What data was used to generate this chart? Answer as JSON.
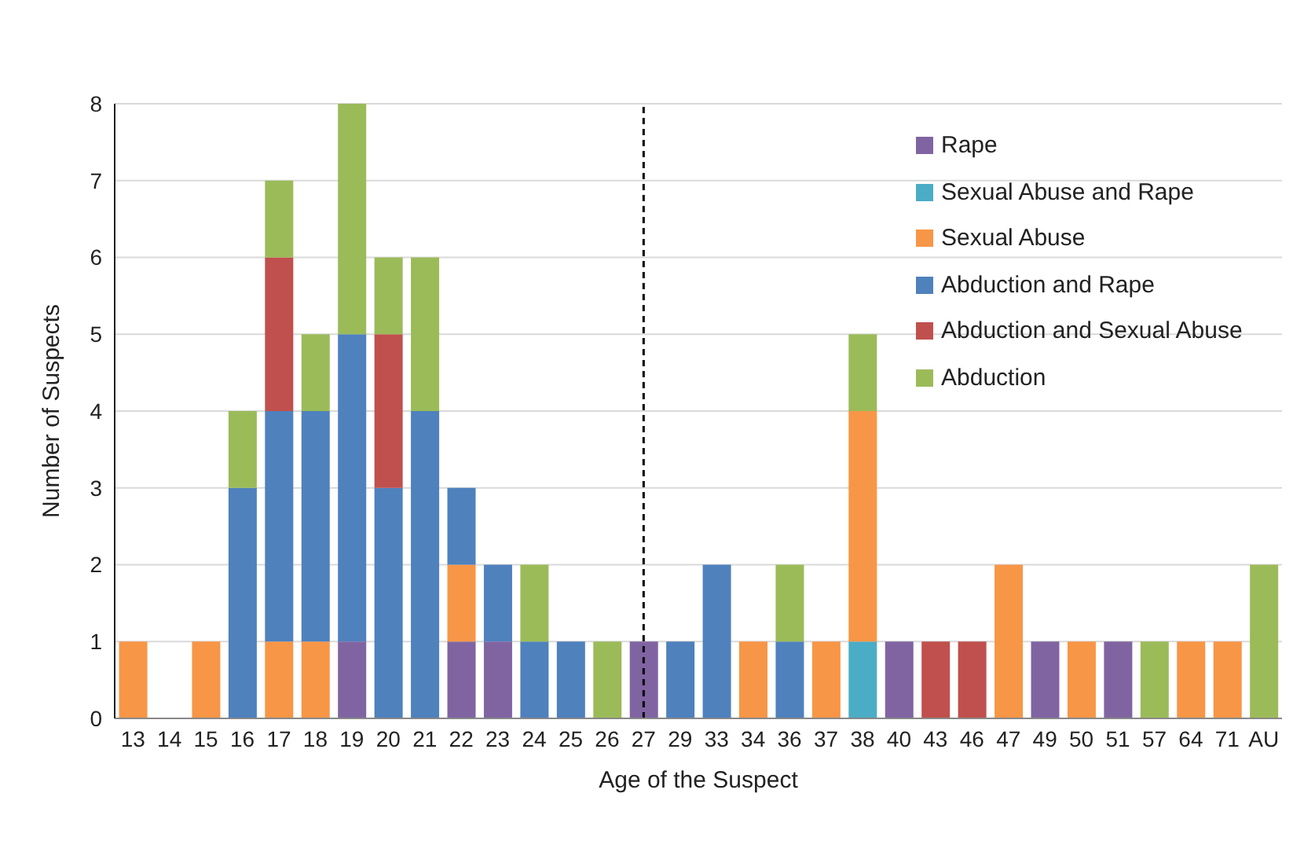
{
  "chart_data": {
    "type": "bar",
    "stacked": true,
    "xlabel": "Age of the Suspect",
    "ylabel": "Number of Suspects",
    "categories": [
      "13",
      "14",
      "15",
      "16",
      "17",
      "18",
      "19",
      "20",
      "21",
      "22",
      "23",
      "24",
      "25",
      "26",
      "27",
      "29",
      "33",
      "34",
      "36",
      "37",
      "38",
      "40",
      "43",
      "46",
      "47",
      "49",
      "50",
      "51",
      "57",
      "64",
      "71",
      "AU"
    ],
    "series": [
      {
        "name": "Rape",
        "color": "#8064a2",
        "values": [
          null,
          null,
          null,
          null,
          null,
          null,
          1,
          null,
          null,
          1,
          1,
          null,
          null,
          null,
          1,
          null,
          null,
          null,
          null,
          null,
          null,
          1,
          null,
          null,
          null,
          1,
          null,
          1,
          null,
          null,
          null,
          null
        ]
      },
      {
        "name": "Sexual Abuse and Rape",
        "color": "#4bacc6",
        "values": [
          null,
          null,
          null,
          null,
          null,
          null,
          null,
          null,
          null,
          null,
          null,
          null,
          null,
          null,
          null,
          null,
          null,
          null,
          null,
          null,
          1,
          null,
          null,
          null,
          null,
          null,
          null,
          null,
          null,
          null,
          null,
          null
        ]
      },
      {
        "name": "Sexual Abuse",
        "color": "#f79646",
        "values": [
          1,
          null,
          1,
          null,
          1,
          1,
          null,
          null,
          null,
          1,
          null,
          null,
          null,
          null,
          null,
          null,
          null,
          1,
          null,
          1,
          3,
          null,
          null,
          null,
          2,
          null,
          1,
          null,
          null,
          1,
          1,
          null
        ]
      },
      {
        "name": "Abduction and Rape",
        "color": "#4f81bd",
        "values": [
          null,
          null,
          null,
          3,
          3,
          3,
          4,
          3,
          4,
          1,
          1,
          1,
          1,
          null,
          null,
          1,
          2,
          null,
          1,
          null,
          null,
          null,
          null,
          null,
          null,
          null,
          null,
          null,
          null,
          null,
          null,
          null
        ]
      },
      {
        "name": "Abduction and Sexual Abuse",
        "color": "#c0504d",
        "values": [
          null,
          null,
          null,
          null,
          2,
          null,
          null,
          2,
          null,
          null,
          null,
          null,
          null,
          null,
          null,
          null,
          null,
          null,
          null,
          null,
          null,
          null,
          1,
          1,
          null,
          null,
          null,
          null,
          null,
          null,
          null,
          null
        ]
      },
      {
        "name": "Abduction",
        "color": "#9bbb59",
        "values": [
          null,
          null,
          null,
          1,
          1,
          1,
          3,
          1,
          2,
          null,
          null,
          1,
          null,
          1,
          null,
          null,
          null,
          null,
          1,
          null,
          1,
          null,
          null,
          null,
          null,
          null,
          null,
          null,
          1,
          null,
          null,
          2
        ]
      }
    ],
    "ylim": [
      0,
      8
    ],
    "yticks": [
      0,
      1,
      2,
      3,
      4,
      5,
      6,
      7,
      8
    ],
    "grid": "y",
    "legend": "top right",
    "ref_lines": [
      {
        "axis": "x",
        "value": "27",
        "color": "#000000",
        "line_style": "dashed"
      }
    ]
  }
}
